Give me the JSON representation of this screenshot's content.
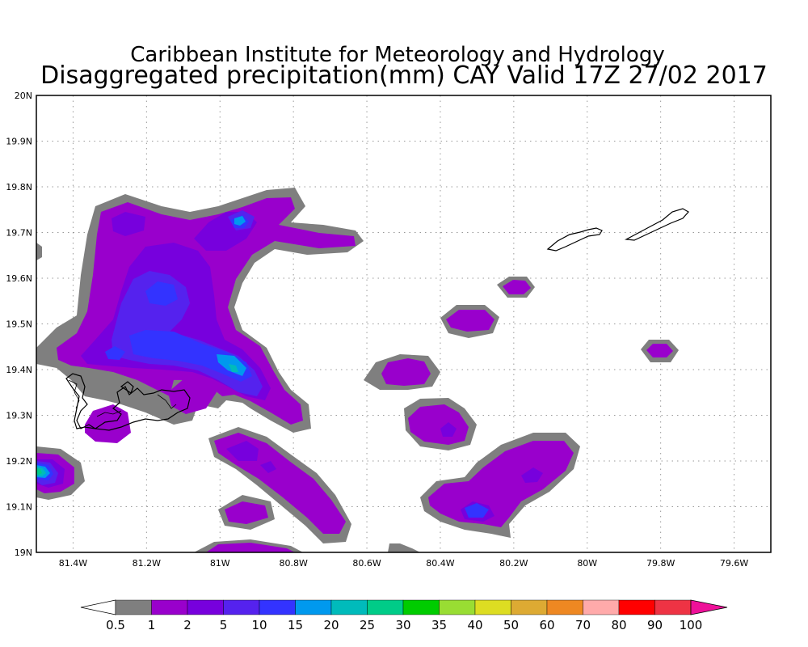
{
  "title_line1": "Caribbean Institute for Meteorology and Hydrology",
  "title_line2": "Disaggregated precipitation(mm) CAY Valid 17Z 27/02 2017",
  "map": {
    "lon_range": [
      -81.5,
      -79.5
    ],
    "lat_range": [
      19.0,
      20.0
    ],
    "x_ticks": [
      "81.4W",
      "81.2W",
      "81W",
      "80.8W",
      "80.6W",
      "80.4W",
      "80.2W",
      "80W",
      "79.8W",
      "79.6W"
    ],
    "y_ticks": [
      "19N",
      "19.1N",
      "19.2N",
      "19.3N",
      "19.4N",
      "19.5N",
      "19.6N",
      "19.7N",
      "19.8N",
      "19.9N",
      "20N"
    ],
    "grid": "dotted",
    "background": "#ffffff"
  },
  "legend": {
    "units": "mm",
    "thresholds": [
      "0.5",
      "1",
      "2",
      "5",
      "10",
      "15",
      "20",
      "25",
      "30",
      "35",
      "40",
      "50",
      "60",
      "70",
      "80",
      "90",
      "100"
    ],
    "colors": [
      "#ffffff",
      "#7f7f7f",
      "#9900cc",
      "#7700dd",
      "#5522ee",
      "#3333ff",
      "#0099ee",
      "#00bbbb",
      "#00cc88",
      "#00cc00",
      "#99dd33",
      "#dddd22",
      "#ddaa33",
      "#ee8822",
      "#ffaaaa",
      "#ff0000",
      "#ee3344",
      "#ee1199"
    ]
  }
}
